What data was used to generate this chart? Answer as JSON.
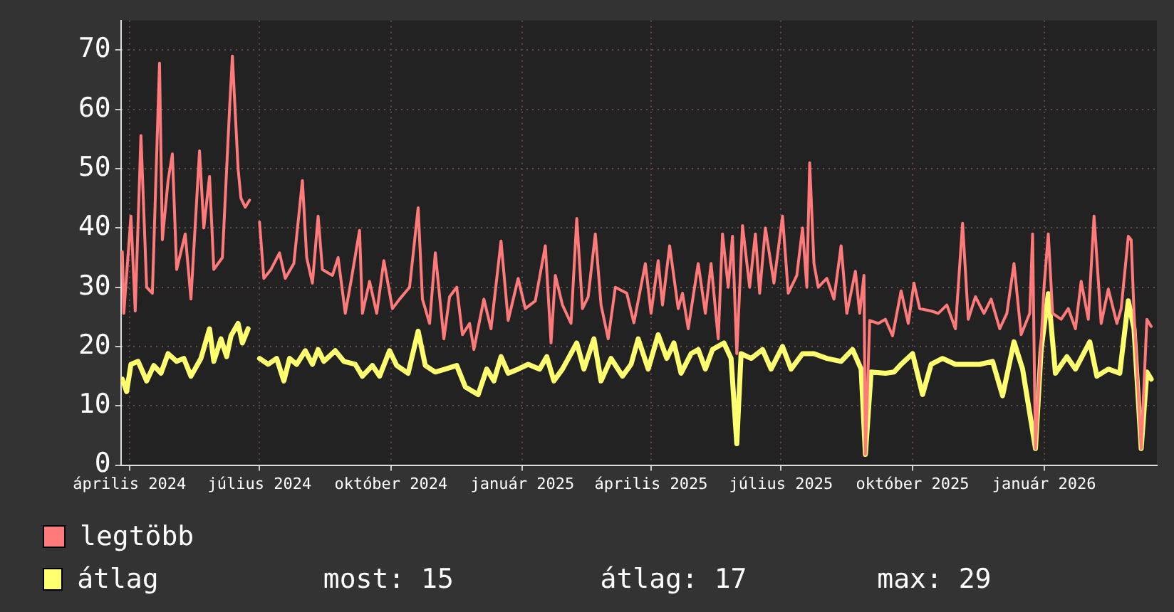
{
  "chart_data": {
    "type": "line",
    "xlim": [
      "2024-03-26",
      "2026-03-21"
    ],
    "xticks": [
      {
        "value": "2024-04-01",
        "label": "április 2024"
      },
      {
        "value": "2024-07-01",
        "label": "július 2024"
      },
      {
        "value": "2024-10-01",
        "label": "október 2024"
      },
      {
        "value": "2025-01-01",
        "label": "január 2025"
      },
      {
        "value": "2025-04-01",
        "label": "április 2025"
      },
      {
        "value": "2025-07-01",
        "label": "július 2025"
      },
      {
        "value": "2025-10-01",
        "label": "október 2025"
      },
      {
        "value": "2026-01-01",
        "label": "január 2026"
      }
    ],
    "ylim": [
      0,
      75
    ],
    "yticks": [
      0,
      10,
      20,
      30,
      40,
      50,
      60,
      70
    ],
    "grid": true,
    "legend": "bottom",
    "marker": "none",
    "line_style": "solid",
    "annotations": [
      "most: 15",
      "átlag: 17",
      "max: 29"
    ],
    "series": [
      {
        "name": "legtöbb",
        "color": "#ff7a7a",
        "x": [
          "2024-03-27",
          "2024-03-28",
          "2024-04-02",
          "2024-04-05",
          "2024-04-09",
          "2024-04-13",
          "2024-04-17",
          "2024-04-22",
          "2024-04-24",
          "2024-04-28",
          "2024-05-01",
          "2024-05-04",
          "2024-05-10",
          "2024-05-14",
          "2024-05-20",
          "2024-05-23",
          "2024-05-27",
          "2024-05-30",
          "2024-06-05",
          "2024-06-10",
          "2024-06-12",
          "2024-06-16",
          "2024-06-18",
          "2024-06-21",
          "2024-06-24",
          "2024-06-28",
          "2024-07-01",
          "2024-07-04",
          "2024-07-09",
          "2024-07-15",
          "2024-07-19",
          "2024-07-25",
          "2024-07-31",
          "2024-08-03",
          "2024-08-07",
          "2024-08-11",
          "2024-08-14",
          "2024-08-21",
          "2024-08-25",
          "2024-08-30",
          "2024-09-03",
          "2024-09-09",
          "2024-09-11",
          "2024-09-16",
          "2024-09-21",
          "2024-09-26",
          "2024-10-02",
          "2024-10-07",
          "2024-10-14",
          "2024-10-20",
          "2024-10-23",
          "2024-10-28",
          "2024-11-01",
          "2024-11-07",
          "2024-11-11",
          "2024-11-16",
          "2024-11-20",
          "2024-11-25",
          "2024-11-28",
          "2024-12-05",
          "2024-12-10",
          "2024-12-17",
          "2024-12-22",
          "2024-12-29",
          "2025-01-03",
          "2025-01-10",
          "2025-01-17",
          "2025-01-21",
          "2025-01-24",
          "2025-01-29",
          "2025-02-04",
          "2025-02-08",
          "2025-02-12",
          "2025-02-16",
          "2025-02-21",
          "2025-02-25",
          "2025-03-02",
          "2025-03-07",
          "2025-03-15",
          "2025-03-20",
          "2025-03-28",
          "2025-04-01",
          "2025-04-06",
          "2025-04-09",
          "2025-04-14",
          "2025-04-20",
          "2025-04-23",
          "2025-04-27",
          "2025-05-04",
          "2025-05-09",
          "2025-05-13",
          "2025-05-18",
          "2025-05-21",
          "2025-05-25",
          "2025-05-28",
          "2025-05-31",
          "2025-06-04",
          "2025-06-09",
          "2025-06-13",
          "2025-06-16",
          "2025-06-20",
          "2025-06-26",
          "2025-07-02",
          "2025-07-06",
          "2025-07-12",
          "2025-07-16",
          "2025-07-19",
          "2025-07-21",
          "2025-07-24",
          "2025-07-27",
          "2025-08-02",
          "2025-08-07",
          "2025-08-12",
          "2025-08-16",
          "2025-08-22",
          "2025-08-25",
          "2025-08-28",
          "2025-08-29",
          "2025-09-01",
          "2025-09-07",
          "2025-09-12",
          "2025-09-17",
          "2025-09-23",
          "2025-09-28",
          "2025-10-02",
          "2025-10-06",
          "2025-10-14",
          "2025-10-19",
          "2025-10-25",
          "2025-10-31",
          "2025-11-05",
          "2025-11-09",
          "2025-11-14",
          "2025-11-20",
          "2025-11-25",
          "2025-12-01",
          "2025-12-06",
          "2025-12-11",
          "2025-12-16",
          "2025-12-22",
          "2025-12-24",
          "2025-12-26",
          "2026-01-01",
          "2026-01-04",
          "2026-01-07",
          "2026-01-13",
          "2026-01-18",
          "2026-01-23",
          "2026-01-27",
          "2026-02-01",
          "2026-02-05",
          "2026-02-10",
          "2026-02-15",
          "2026-02-21",
          "2026-02-24",
          "2026-03-01",
          "2026-03-03",
          "2026-03-05",
          "2026-03-10",
          "2026-03-14",
          "2026-03-17"
        ],
        "values": [
          36,
          25.6,
          42,
          26,
          55.6,
          30,
          29,
          67.8,
          38,
          48,
          52.5,
          33,
          39,
          28,
          53,
          40,
          48.7,
          33,
          35,
          60,
          69,
          50,
          45,
          43.5,
          44.7,
          null,
          41,
          31.5,
          33,
          35.8,
          31.5,
          34,
          48,
          35,
          30.7,
          42,
          33,
          32,
          35,
          25.6,
          31,
          39.6,
          25.6,
          31,
          25.6,
          34.5,
          26.4,
          28,
          30,
          43.4,
          28,
          23.9,
          35.8,
          21.3,
          28.4,
          30,
          22,
          23.9,
          19.5,
          28,
          23,
          37.8,
          24.4,
          31.5,
          26.4,
          27.7,
          37,
          20.6,
          32,
          27,
          23.9,
          41.6,
          26.4,
          28.4,
          39,
          27,
          21.3,
          30,
          29,
          24,
          34,
          25.6,
          34.5,
          27,
          37,
          26.4,
          29,
          23,
          34,
          25.6,
          34,
          21.3,
          39,
          30,
          38.6,
          18.8,
          40.4,
          30,
          39,
          29,
          40,
          30.7,
          42,
          29,
          32,
          40,
          30,
          51,
          34,
          30,
          31.5,
          28,
          37,
          25.6,
          32.7,
          25.6,
          32,
          1.8,
          24.4,
          23.9,
          24.6,
          21.8,
          29.4,
          23.9,
          30.7,
          26.4,
          26,
          25.6,
          27,
          23,
          40.8,
          24.6,
          28.4,
          25.6,
          28,
          23,
          25.6,
          34,
          22,
          25.6,
          39,
          2.8,
          30,
          39,
          25.6,
          24.6,
          26.4,
          23,
          31,
          24.6,
          42,
          23.9,
          29.7,
          23.9,
          26.4,
          38.6,
          38,
          25.6,
          2.8,
          24.6,
          23.4
        ]
      },
      {
        "name": "átlag",
        "color": "#ffff70",
        "x": [
          "2024-03-27",
          "2024-03-30",
          "2024-04-02",
          "2024-04-07",
          "2024-04-13",
          "2024-04-18",
          "2024-04-23",
          "2024-04-28",
          "2024-05-04",
          "2024-05-09",
          "2024-05-14",
          "2024-05-21",
          "2024-05-27",
          "2024-05-30",
          "2024-06-04",
          "2024-06-08",
          "2024-06-11",
          "2024-06-16",
          "2024-06-19",
          "2024-06-23",
          "2024-06-28",
          "2024-07-01",
          "2024-07-07",
          "2024-07-13",
          "2024-07-18",
          "2024-07-22",
          "2024-07-27",
          "2024-08-02",
          "2024-08-07",
          "2024-08-11",
          "2024-08-15",
          "2024-08-23",
          "2024-08-29",
          "2024-09-06",
          "2024-09-11",
          "2024-09-18",
          "2024-09-23",
          "2024-09-30",
          "2024-10-05",
          "2024-10-13",
          "2024-10-20",
          "2024-10-25",
          "2024-11-01",
          "2024-11-08",
          "2024-11-16",
          "2024-11-22",
          "2024-12-01",
          "2024-12-07",
          "2024-12-12",
          "2024-12-17",
          "2024-12-22",
          "2024-12-29",
          "2025-01-05",
          "2025-01-13",
          "2025-01-18",
          "2025-01-23",
          "2025-01-29",
          "2025-02-08",
          "2025-02-13",
          "2025-02-20",
          "2025-02-25",
          "2025-03-04",
          "2025-03-12",
          "2025-03-18",
          "2025-03-23",
          "2025-03-30",
          "2025-04-06",
          "2025-04-12",
          "2025-04-17",
          "2025-04-22",
          "2025-04-29",
          "2025-05-04",
          "2025-05-09",
          "2025-05-14",
          "2025-05-22",
          "2025-05-27",
          "2025-05-31",
          "2025-06-03",
          "2025-06-10",
          "2025-06-18",
          "2025-06-24",
          "2025-07-02",
          "2025-07-08",
          "2025-07-16",
          "2025-07-24",
          "2025-08-02",
          "2025-08-12",
          "2025-08-20",
          "2025-08-26",
          "2025-08-29",
          "2025-09-02",
          "2025-09-12",
          "2025-09-18",
          "2025-09-23",
          "2025-10-01",
          "2025-10-08",
          "2025-10-14",
          "2025-10-22",
          "2025-10-31",
          "2025-11-09",
          "2025-11-17",
          "2025-11-26",
          "2025-12-03",
          "2025-12-11",
          "2025-12-17",
          "2025-12-26",
          "2025-12-30",
          "2026-01-04",
          "2026-01-09",
          "2026-01-17",
          "2026-01-23",
          "2026-02-02",
          "2026-02-07",
          "2026-02-15",
          "2026-02-23",
          "2026-03-01",
          "2026-03-05",
          "2026-03-10",
          "2026-03-14",
          "2026-03-17"
        ],
        "values": [
          14.5,
          12.4,
          17,
          17.5,
          14.2,
          16.8,
          15.5,
          18.8,
          17.5,
          18,
          15,
          18,
          23,
          17.5,
          21.3,
          18.3,
          21.8,
          23.9,
          20.6,
          23,
          null,
          18,
          17,
          18,
          14.2,
          18,
          17,
          19.3,
          17,
          19.5,
          17.5,
          19.3,
          17.5,
          17,
          15,
          16.8,
          15,
          19.3,
          16.8,
          15.5,
          22.6,
          16.8,
          15.7,
          16.2,
          16.8,
          13.2,
          11.9,
          16.2,
          14.2,
          18.3,
          15.5,
          16.2,
          17,
          16.2,
          18.3,
          14.2,
          16.2,
          20.6,
          16.2,
          21.3,
          14.2,
          18,
          15,
          17,
          21.3,
          16.2,
          22,
          18,
          20.6,
          15.5,
          18.8,
          19.5,
          16.2,
          19.5,
          20.6,
          18,
          3.6,
          18.8,
          18,
          19.5,
          16.2,
          20,
          16.2,
          18.8,
          18.8,
          18,
          17.5,
          19.5,
          16.2,
          1.8,
          15.7,
          15.5,
          15.7,
          17,
          18.8,
          11.9,
          17,
          18,
          17,
          17,
          17,
          17.5,
          11.7,
          20.8,
          16.2,
          2.8,
          19.5,
          28.9,
          15.5,
          18.3,
          16.2,
          20.8,
          15,
          16.2,
          15.5,
          27.7,
          23,
          2.8,
          15.7,
          14.5
        ]
      }
    ]
  }
}
